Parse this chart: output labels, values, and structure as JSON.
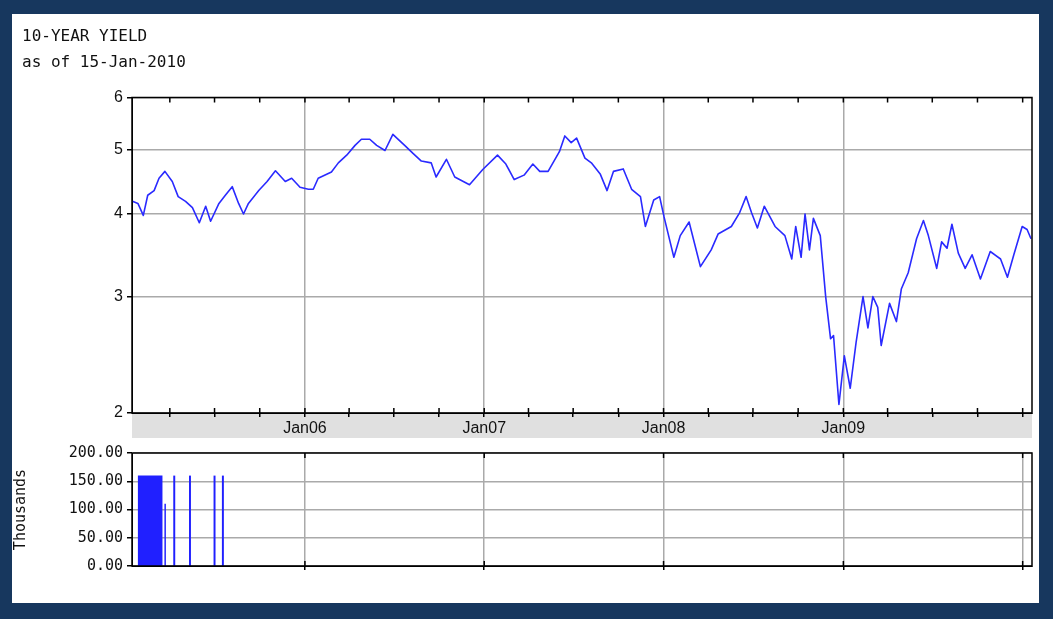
{
  "chart_data": [
    {
      "type": "line",
      "title": "10-YEAR YIELD",
      "subtitle": "as of 15-Jan-2010",
      "x": [
        "2005-01-15",
        "2005-01-26",
        "2005-02-06",
        "2005-02-15",
        "2005-02-28",
        "2005-03-10",
        "2005-03-22",
        "2005-04-06",
        "2005-04-18",
        "2005-05-03",
        "2005-05-17",
        "2005-05-31",
        "2005-06-13",
        "2005-06-23",
        "2005-07-10",
        "2005-07-23",
        "2005-08-06",
        "2005-08-19",
        "2005-08-29",
        "2005-09-08",
        "2005-09-29",
        "2005-10-16",
        "2005-11-02",
        "2005-11-22",
        "2005-12-05",
        "2005-12-22",
        "2006-01-08",
        "2006-01-18",
        "2006-01-28",
        "2006-02-24",
        "2006-03-10",
        "2006-03-27",
        "2006-04-13",
        "2006-04-26",
        "2006-05-13",
        "2006-05-27",
        "2006-06-13",
        "2006-06-29",
        "2006-07-23",
        "2006-08-09",
        "2006-08-26",
        "2006-09-15",
        "2006-09-25",
        "2006-10-16",
        "2006-11-02",
        "2006-12-02",
        "2006-12-29",
        "2007-01-28",
        "2007-02-14",
        "2007-03-03",
        "2007-03-23",
        "2007-04-10",
        "2007-04-24",
        "2007-05-11",
        "2007-06-03",
        "2007-06-14",
        "2007-06-27",
        "2007-07-08",
        "2007-07-25",
        "2007-08-07",
        "2007-08-25",
        "2007-09-08",
        "2007-09-21",
        "2007-10-11",
        "2007-10-28",
        "2007-11-15",
        "2007-11-25",
        "2007-12-12",
        "2007-12-24",
        "2008-01-02",
        "2008-01-22",
        "2008-02-04",
        "2008-02-22",
        "2008-03-16",
        "2008-04-07",
        "2008-04-21",
        "2008-05-18",
        "2008-06-04",
        "2008-06-17",
        "2008-06-28",
        "2008-07-10",
        "2008-07-24",
        "2008-08-15",
        "2008-09-04",
        "2008-09-18",
        "2008-09-26",
        "2008-10-07",
        "2008-10-15",
        "2008-10-24",
        "2008-11-01",
        "2008-11-15",
        "2008-11-26",
        "2008-12-06",
        "2008-12-12",
        "2008-12-23",
        "2009-01-03",
        "2009-01-15",
        "2009-01-27",
        "2009-02-10",
        "2009-02-20",
        "2009-03-02",
        "2009-03-12",
        "2009-03-19",
        "2009-04-05",
        "2009-04-19",
        "2009-04-29",
        "2009-05-13",
        "2009-05-30",
        "2009-06-13",
        "2009-06-23",
        "2009-07-10",
        "2009-07-20",
        "2009-07-31",
        "2009-08-10",
        "2009-08-23",
        "2009-09-06",
        "2009-09-20",
        "2009-10-07",
        "2009-10-27",
        "2009-11-17",
        "2009-12-01",
        "2009-12-14",
        "2009-12-31",
        "2010-01-10",
        "2010-01-18"
      ],
      "series": [
        {
          "color": "#2a2aff",
          "values": [
            4.18,
            4.15,
            3.98,
            4.27,
            4.34,
            4.53,
            4.64,
            4.48,
            4.25,
            4.18,
            4.09,
            3.88,
            4.11,
            3.9,
            4.15,
            4.27,
            4.4,
            4.15,
            4.0,
            4.15,
            4.34,
            4.48,
            4.65,
            4.48,
            4.53,
            4.39,
            4.36,
            4.36,
            4.53,
            4.63,
            4.78,
            4.91,
            5.08,
            5.19,
            5.19,
            5.08,
            4.99,
            5.28,
            5.08,
            4.94,
            4.81,
            4.78,
            4.55,
            4.84,
            4.55,
            4.43,
            4.67,
            4.91,
            4.76,
            4.51,
            4.58,
            4.76,
            4.64,
            4.64,
            4.97,
            5.25,
            5.13,
            5.21,
            4.86,
            4.78,
            4.6,
            4.34,
            4.64,
            4.68,
            4.36,
            4.25,
            3.83,
            4.2,
            4.25,
            3.96,
            3.44,
            3.71,
            3.89,
            3.33,
            3.53,
            3.73,
            3.83,
            4.02,
            4.25,
            4.02,
            3.81,
            4.11,
            3.83,
            3.71,
            3.42,
            3.83,
            3.44,
            4.0,
            3.53,
            3.94,
            3.71,
            3.0,
            2.59,
            2.62,
            2.06,
            2.44,
            2.18,
            2.56,
            3.0,
            2.69,
            3.0,
            2.89,
            2.53,
            2.93,
            2.75,
            3.08,
            3.26,
            3.67,
            3.91,
            3.71,
            3.31,
            3.63,
            3.55,
            3.86,
            3.49,
            3.31,
            3.47,
            3.19,
            3.51,
            3.42,
            3.21,
            3.47,
            3.83,
            3.79,
            3.67
          ]
        }
      ],
      "xlim": [
        "2005-01-14",
        "2010-01-20"
      ],
      "xticks": [
        {
          "value": "2005-04-01",
          "label": null
        },
        {
          "value": "2005-07-01",
          "label": null
        },
        {
          "value": "2005-10-01",
          "label": null
        },
        {
          "value": "2006-01-01",
          "label": "Jan06"
        },
        {
          "value": "2006-04-01",
          "label": null
        },
        {
          "value": "2006-07-01",
          "label": null
        },
        {
          "value": "2006-10-01",
          "label": null
        },
        {
          "value": "2007-01-01",
          "label": "Jan07"
        },
        {
          "value": "2007-04-01",
          "label": null
        },
        {
          "value": "2007-07-01",
          "label": null
        },
        {
          "value": "2007-10-01",
          "label": null
        },
        {
          "value": "2008-01-01",
          "label": "Jan08"
        },
        {
          "value": "2008-04-01",
          "label": null
        },
        {
          "value": "2008-07-01",
          "label": null
        },
        {
          "value": "2008-10-01",
          "label": null
        },
        {
          "value": "2009-01-01",
          "label": "Jan09"
        },
        {
          "value": "2009-04-01",
          "label": null
        },
        {
          "value": "2009-07-01",
          "label": null
        },
        {
          "value": "2009-10-01",
          "label": null
        },
        {
          "value": "2010-01-01",
          "label": null
        }
      ],
      "ylim": [
        2,
        6
      ],
      "yticks": [
        2,
        3,
        4,
        5,
        6
      ],
      "log": "y",
      "grid": true
    },
    {
      "type": "histogram",
      "ylabel": "Thousands",
      "bins": [
        "2005-01-26",
        "2005-03-17",
        "2005-03-21",
        "2005-03-24",
        "2005-04-08",
        "2005-04-12",
        "2005-05-10",
        "2005-05-14",
        "2005-06-29",
        "2005-07-03",
        "2005-07-16",
        "2005-07-20"
      ],
      "values": [
        160,
        0,
        110,
        0,
        160,
        0,
        160,
        0,
        160,
        0,
        160
      ],
      "color": "#2020ff",
      "xlim": [
        "2005-01-14",
        "2010-01-20"
      ],
      "xticks": [
        {
          "value": "2006-01-01",
          "label": null
        },
        {
          "value": "2007-01-01",
          "label": null
        },
        {
          "value": "2008-01-01",
          "label": null
        },
        {
          "value": "2009-01-01",
          "label": null
        },
        {
          "value": "2010-01-01",
          "label": null
        }
      ],
      "ylim": [
        0,
        200
      ],
      "yticks": [
        {
          "value": 0,
          "label": "0.00"
        },
        {
          "value": 50,
          "label": "50.00"
        },
        {
          "value": 100,
          "label": "100.00"
        },
        {
          "value": 150,
          "label": "150.00"
        },
        {
          "value": 200,
          "label": "200.00"
        }
      ],
      "tick_labels": "y",
      "grid": true
    }
  ]
}
